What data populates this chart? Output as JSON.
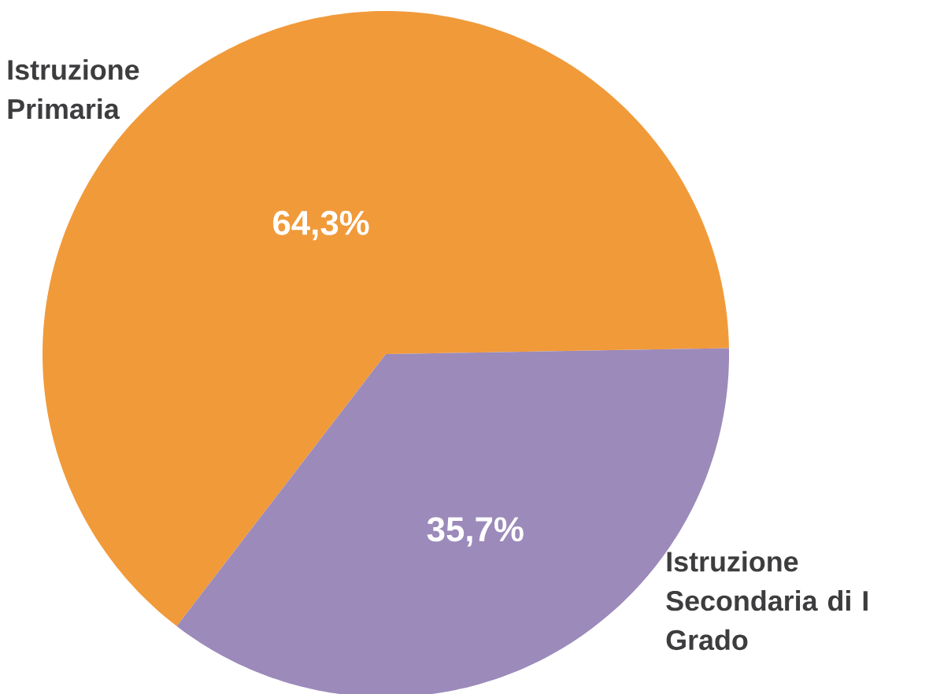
{
  "chart_data": {
    "type": "pie",
    "categories": [
      "Istruzione Primaria",
      "Istruzione Secondaria di I Grado"
    ],
    "values": [
      64.3,
      35.7
    ],
    "colors": [
      "#f19a3a",
      "#9b8aba"
    ],
    "value_labels": [
      "64,3%",
      "35,7%"
    ]
  }
}
